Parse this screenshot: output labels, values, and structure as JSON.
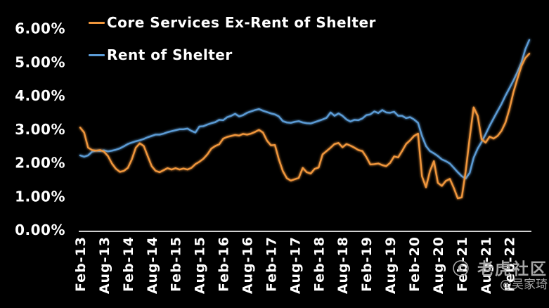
{
  "colors": {
    "background": "#000000",
    "text": "#FFFFFF",
    "axis_line": "#D0D0D0",
    "watermark": "#A6A6A6"
  },
  "watermark": {
    "line1": "ⓒ 老虎社区",
    "line2": "@吴家琦"
  },
  "chart_data": {
    "type": "line",
    "title": "",
    "xlabel": "",
    "ylabel": "",
    "grid": false,
    "legend_position": "top-left",
    "x_axis": {
      "frequency": "monthly",
      "first_point": "Feb-13",
      "tick_every_n_points": 6,
      "tick_labels": [
        "Feb-13",
        "Aug-13",
        "Feb-14",
        "Aug-14",
        "Feb-15",
        "Aug-15",
        "Feb-16",
        "Aug-16",
        "Feb-17",
        "Aug-17",
        "Feb-18",
        "Aug-18",
        "Feb-19",
        "Aug-19",
        "Feb-20",
        "Aug-20",
        "Feb-21",
        "Aug-21",
        "Feb-22"
      ]
    },
    "y_axis": {
      "min": 0,
      "max": 6,
      "unit": "%",
      "tick_labels": [
        "0.00%",
        "1.00%",
        "2.00%",
        "3.00%",
        "4.00%",
        "5.00%",
        "6.00%"
      ]
    },
    "series": [
      {
        "name": "Core Services Ex-Rent of Shelter",
        "color": "#F0963C",
        "values": [
          3.05,
          2.9,
          2.45,
          2.38,
          2.36,
          2.38,
          2.33,
          2.2,
          1.98,
          1.82,
          1.73,
          1.76,
          1.85,
          2.1,
          2.45,
          2.58,
          2.5,
          2.2,
          1.9,
          1.76,
          1.72,
          1.78,
          1.84,
          1.8,
          1.84,
          1.8,
          1.83,
          1.8,
          1.85,
          1.96,
          2.03,
          2.12,
          2.25,
          2.42,
          2.5,
          2.55,
          2.72,
          2.77,
          2.8,
          2.83,
          2.81,
          2.86,
          2.84,
          2.87,
          2.92,
          2.98,
          2.9,
          2.66,
          2.52,
          2.53,
          2.1,
          1.75,
          1.54,
          1.47,
          1.51,
          1.55,
          1.85,
          1.72,
          1.68,
          1.82,
          1.86,
          2.25,
          2.35,
          2.45,
          2.56,
          2.59,
          2.46,
          2.56,
          2.51,
          2.45,
          2.38,
          2.35,
          2.17,
          1.95,
          1.96,
          1.98,
          1.93,
          1.9,
          2.0,
          2.19,
          2.16,
          2.35,
          2.56,
          2.67,
          2.8,
          2.87,
          1.6,
          1.27,
          1.75,
          2.05,
          1.4,
          1.31,
          1.46,
          1.52,
          1.25,
          0.94,
          0.97,
          1.75,
          2.75,
          3.65,
          3.4,
          2.7,
          2.6,
          2.78,
          2.72,
          2.8,
          2.95,
          3.2,
          3.6,
          4.1,
          4.5,
          4.88,
          5.12,
          5.25
        ]
      },
      {
        "name": "Rent of Shelter",
        "color": "#5B9BD5",
        "values": [
          2.22,
          2.18,
          2.22,
          2.33,
          2.36,
          2.35,
          2.37,
          2.34,
          2.36,
          2.39,
          2.43,
          2.49,
          2.56,
          2.6,
          2.64,
          2.67,
          2.71,
          2.76,
          2.8,
          2.84,
          2.84,
          2.87,
          2.91,
          2.94,
          2.97,
          3.0,
          3.0,
          3.02,
          2.95,
          2.9,
          3.08,
          3.09,
          3.14,
          3.18,
          3.21,
          3.28,
          3.27,
          3.36,
          3.4,
          3.46,
          3.38,
          3.42,
          3.49,
          3.53,
          3.57,
          3.6,
          3.55,
          3.51,
          3.47,
          3.44,
          3.38,
          3.24,
          3.2,
          3.19,
          3.22,
          3.24,
          3.2,
          3.18,
          3.17,
          3.21,
          3.25,
          3.29,
          3.34,
          3.5,
          3.4,
          3.47,
          3.4,
          3.29,
          3.23,
          3.28,
          3.27,
          3.32,
          3.42,
          3.44,
          3.53,
          3.48,
          3.57,
          3.5,
          3.49,
          3.52,
          3.4,
          3.4,
          3.33,
          3.36,
          3.29,
          3.19,
          2.8,
          2.5,
          2.35,
          2.28,
          2.2,
          2.1,
          2.05,
          1.98,
          1.85,
          1.72,
          1.6,
          1.53,
          1.7,
          2.15,
          2.42,
          2.62,
          2.85,
          3.1,
          3.32,
          3.54,
          3.75,
          4.0,
          4.22,
          4.45,
          4.7,
          4.98,
          5.38,
          5.66
        ]
      }
    ]
  }
}
